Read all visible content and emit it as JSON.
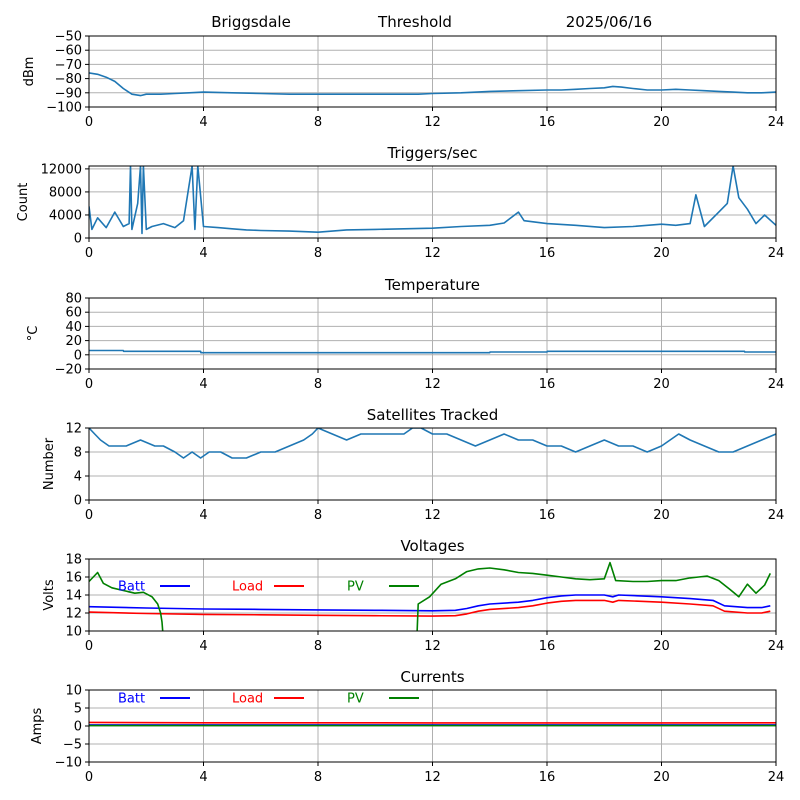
{
  "header": {
    "station": "Briggsdale",
    "mode": "Threshold",
    "date": "2025/06/16"
  },
  "chart_data": [
    {
      "type": "line",
      "id": "power",
      "title": "",
      "xlabel": "",
      "ylabel": "dBm",
      "xlim": [
        0,
        24
      ],
      "ylim": [
        -100,
        -50
      ],
      "xticks": [
        0,
        4,
        8,
        12,
        16,
        20,
        24
      ],
      "yticks": [
        -100,
        -90,
        -80,
        -70,
        -60,
        -50
      ],
      "grid": true,
      "series": [
        {
          "color": "#1f77b4",
          "x": [
            0,
            0.3,
            0.6,
            0.9,
            1.2,
            1.5,
            1.8,
            2.0,
            2.5,
            3.0,
            3.5,
            4.0,
            5.0,
            6.0,
            7.0,
            8.0,
            9.0,
            10.0,
            11.0,
            11.5,
            12.0,
            13.0,
            14.0,
            15.0,
            16.0,
            16.5,
            17.0,
            17.5,
            18.0,
            18.3,
            18.6,
            19.0,
            19.5,
            20.0,
            20.5,
            21.0,
            21.5,
            22.0,
            22.5,
            23.0,
            23.5,
            24.0
          ],
          "y": [
            -76,
            -77,
            -79,
            -82,
            -87,
            -91,
            -92,
            -91,
            -91,
            -90.5,
            -90,
            -89.5,
            -90,
            -90.5,
            -91,
            -91,
            -91,
            -91,
            -91,
            -91,
            -90.5,
            -90,
            -89,
            -88.5,
            -88,
            -88,
            -87.5,
            -87,
            -86.5,
            -85.5,
            -86,
            -87,
            -88,
            -88,
            -87.5,
            -88,
            -88.5,
            -89,
            -89.5,
            -90,
            -90,
            -89.5
          ]
        }
      ]
    },
    {
      "type": "line",
      "id": "triggers",
      "title": "Triggers/sec",
      "xlabel": "",
      "ylabel": "Count",
      "xlim": [
        0,
        24
      ],
      "ylim": [
        0,
        12500
      ],
      "xticks": [
        0,
        4,
        8,
        12,
        16,
        20,
        24
      ],
      "yticks": [
        0,
        4000,
        8000,
        12000
      ],
      "grid": true,
      "series": [
        {
          "color": "#1f77b4",
          "x": [
            0,
            0.1,
            0.3,
            0.6,
            0.9,
            1.2,
            1.4,
            1.45,
            1.5,
            1.7,
            1.8,
            1.85,
            1.9,
            2.0,
            2.2,
            2.6,
            3.0,
            3.3,
            3.6,
            3.7,
            3.8,
            4.0,
            4.5,
            5.0,
            5.5,
            6.0,
            7.0,
            8.0,
            9.0,
            10.0,
            11.0,
            12.0,
            13.0,
            14.0,
            14.5,
            15.0,
            15.2,
            16.0,
            17.0,
            18.0,
            19.0,
            20.0,
            20.5,
            21.0,
            21.2,
            21.5,
            22.0,
            22.3,
            22.5,
            22.7,
            23.0,
            23.3,
            23.6,
            24.0
          ],
          "y": [
            5500,
            1500,
            3500,
            1800,
            4500,
            2000,
            2500,
            12500,
            1500,
            6000,
            12500,
            800,
            12500,
            1500,
            2000,
            2500,
            1800,
            3000,
            12500,
            1500,
            12500,
            2000,
            1800,
            1600,
            1400,
            1300,
            1200,
            1000,
            1400,
            1500,
            1600,
            1700,
            2000,
            2200,
            2600,
            4500,
            3000,
            2500,
            2200,
            1800,
            2000,
            2400,
            2200,
            2500,
            7500,
            2000,
            4500,
            6000,
            12500,
            7000,
            5000,
            2500,
            4000,
            2200
          ]
        }
      ]
    },
    {
      "type": "line",
      "id": "temperature",
      "title": "Temperature",
      "xlabel": "",
      "ylabel": "°C",
      "xlim": [
        0,
        24
      ],
      "ylim": [
        -20,
        80
      ],
      "xticks": [
        0,
        4,
        8,
        12,
        16,
        20,
        24
      ],
      "yticks": [
        -20,
        0,
        20,
        40,
        60,
        80
      ],
      "grid": true,
      "series": [
        {
          "color": "#1f77b4",
          "x": [
            0,
            1.2,
            1.21,
            3.9,
            3.91,
            14.0,
            14.01,
            16.0,
            16.01,
            22.9,
            22.91,
            24.0
          ],
          "y": [
            6,
            6,
            5,
            5,
            3,
            3,
            4,
            4,
            5,
            5,
            4,
            4
          ]
        }
      ]
    },
    {
      "type": "line",
      "id": "satellites",
      "title": "Satellites Tracked",
      "xlabel": "",
      "ylabel": "Number",
      "xlim": [
        0,
        24
      ],
      "ylim": [
        0,
        12
      ],
      "xticks": [
        0,
        4,
        8,
        12,
        16,
        20,
        24
      ],
      "yticks": [
        0,
        4,
        8,
        12
      ],
      "grid": true,
      "series": [
        {
          "color": "#1f77b4",
          "x": [
            0,
            0.2,
            0.4,
            0.7,
            1.0,
            1.3,
            1.8,
            2.3,
            2.6,
            3.0,
            3.3,
            3.6,
            3.9,
            4.2,
            4.6,
            5.0,
            5.5,
            6.0,
            6.5,
            7.0,
            7.5,
            7.8,
            8.0,
            8.5,
            9.0,
            9.5,
            10.0,
            10.5,
            11.0,
            11.3,
            11.6,
            12.0,
            12.5,
            13.0,
            13.5,
            14.0,
            14.5,
            15.0,
            15.5,
            16.0,
            16.5,
            17.0,
            17.5,
            18.0,
            18.5,
            19.0,
            19.5,
            20.0,
            20.3,
            20.6,
            21.0,
            21.5,
            22.0,
            22.5,
            23.0,
            23.5,
            24.0
          ],
          "y": [
            12,
            11,
            10,
            9,
            9,
            9,
            10,
            9,
            9,
            8,
            7,
            8,
            7,
            8,
            8,
            7,
            7,
            8,
            8,
            9,
            10,
            11,
            12,
            11,
            10,
            11,
            11,
            11,
            11,
            12,
            12,
            11,
            11,
            10,
            9,
            10,
            11,
            10,
            10,
            9,
            9,
            8,
            9,
            10,
            9,
            9,
            8,
            9,
            10,
            11,
            10,
            9,
            8,
            8,
            9,
            10,
            11
          ]
        }
      ]
    },
    {
      "type": "line",
      "id": "voltages",
      "title": "Voltages",
      "xlabel": "",
      "ylabel": "Volts",
      "xlim": [
        0,
        24
      ],
      "ylim": [
        10,
        18
      ],
      "xticks": [
        0,
        4,
        8,
        12,
        16,
        20,
        24
      ],
      "yticks": [
        10,
        12,
        14,
        16,
        18
      ],
      "grid": true,
      "legend": "top-left, inline",
      "series": [
        {
          "name": "Batt",
          "color": "#0000ff",
          "x": [
            0,
            2,
            4,
            6,
            8,
            10,
            12,
            12.8,
            13.2,
            13.6,
            14,
            15,
            15.5,
            16,
            16.5,
            17,
            18,
            18.3,
            18.5,
            20,
            21,
            21.8,
            22.2,
            23,
            23.5,
            23.8
          ],
          "y": [
            12.7,
            12.55,
            12.45,
            12.4,
            12.35,
            12.3,
            12.25,
            12.3,
            12.5,
            12.8,
            13.0,
            13.2,
            13.4,
            13.7,
            13.9,
            14.0,
            14.0,
            13.8,
            14.0,
            13.8,
            13.6,
            13.4,
            12.8,
            12.6,
            12.6,
            12.8
          ]
        },
        {
          "name": "Load",
          "color": "#ff0000",
          "x": [
            0,
            2,
            4,
            6,
            8,
            10,
            12,
            12.8,
            13.2,
            13.6,
            14,
            15,
            15.5,
            16,
            16.5,
            17,
            18,
            18.3,
            18.5,
            20,
            21,
            21.8,
            22.2,
            23,
            23.5,
            23.8
          ],
          "y": [
            12.1,
            11.95,
            11.85,
            11.8,
            11.75,
            11.7,
            11.65,
            11.7,
            11.9,
            12.2,
            12.4,
            12.6,
            12.8,
            13.1,
            13.3,
            13.4,
            13.4,
            13.2,
            13.4,
            13.2,
            13.0,
            12.8,
            12.2,
            12.0,
            12.0,
            12.2
          ]
        },
        {
          "name": "PV",
          "color": "#008000",
          "x": [
            0,
            0.3,
            0.5,
            0.8,
            1.2,
            1.6,
            1.9,
            2.2,
            2.4,
            2.5,
            2.55,
            2.6,
            11.45,
            11.5,
            11.9,
            12.3,
            12.8,
            13.2,
            13.6,
            14.0,
            14.5,
            15.0,
            15.5,
            16.0,
            16.5,
            17.0,
            17.5,
            18.0,
            18.2,
            18.4,
            19.0,
            19.5,
            20.0,
            20.5,
            21.0,
            21.3,
            21.6,
            22.0,
            22.4,
            22.7,
            23.0,
            23.3,
            23.6,
            23.8
          ],
          "y": [
            15.5,
            16.5,
            15.3,
            14.8,
            14.5,
            14.2,
            14.3,
            13.8,
            13.0,
            12.0,
            11.0,
            9.0,
            9.0,
            13.0,
            13.8,
            15.2,
            15.8,
            16.6,
            16.9,
            17.0,
            16.8,
            16.5,
            16.4,
            16.2,
            16.0,
            15.8,
            15.7,
            15.8,
            17.6,
            15.6,
            15.5,
            15.5,
            15.6,
            15.6,
            15.9,
            16.0,
            16.1,
            15.6,
            14.6,
            13.8,
            15.2,
            14.2,
            15.1,
            16.4
          ]
        }
      ]
    },
    {
      "type": "line",
      "id": "currents",
      "title": "Currents",
      "xlabel": "",
      "ylabel": "Amps",
      "xlim": [
        0,
        24
      ],
      "ylim": [
        -10,
        10
      ],
      "xticks": [
        0,
        4,
        8,
        12,
        16,
        20,
        24
      ],
      "yticks": [
        -10,
        -5,
        0,
        5,
        10
      ],
      "grid": true,
      "legend": "top-left, inline",
      "series": [
        {
          "name": "Batt",
          "color": "#0000ff",
          "x": [
            0,
            24
          ],
          "y": [
            0.3,
            0.3
          ]
        },
        {
          "name": "Load",
          "color": "#ff0000",
          "x": [
            0,
            4,
            8,
            12,
            16,
            20,
            24
          ],
          "y": [
            1.0,
            0.9,
            0.9,
            0.85,
            0.85,
            0.85,
            0.9
          ]
        },
        {
          "name": "PV",
          "color": "#008000",
          "x": [
            0,
            24
          ],
          "y": [
            0.1,
            0.1
          ]
        }
      ]
    }
  ]
}
